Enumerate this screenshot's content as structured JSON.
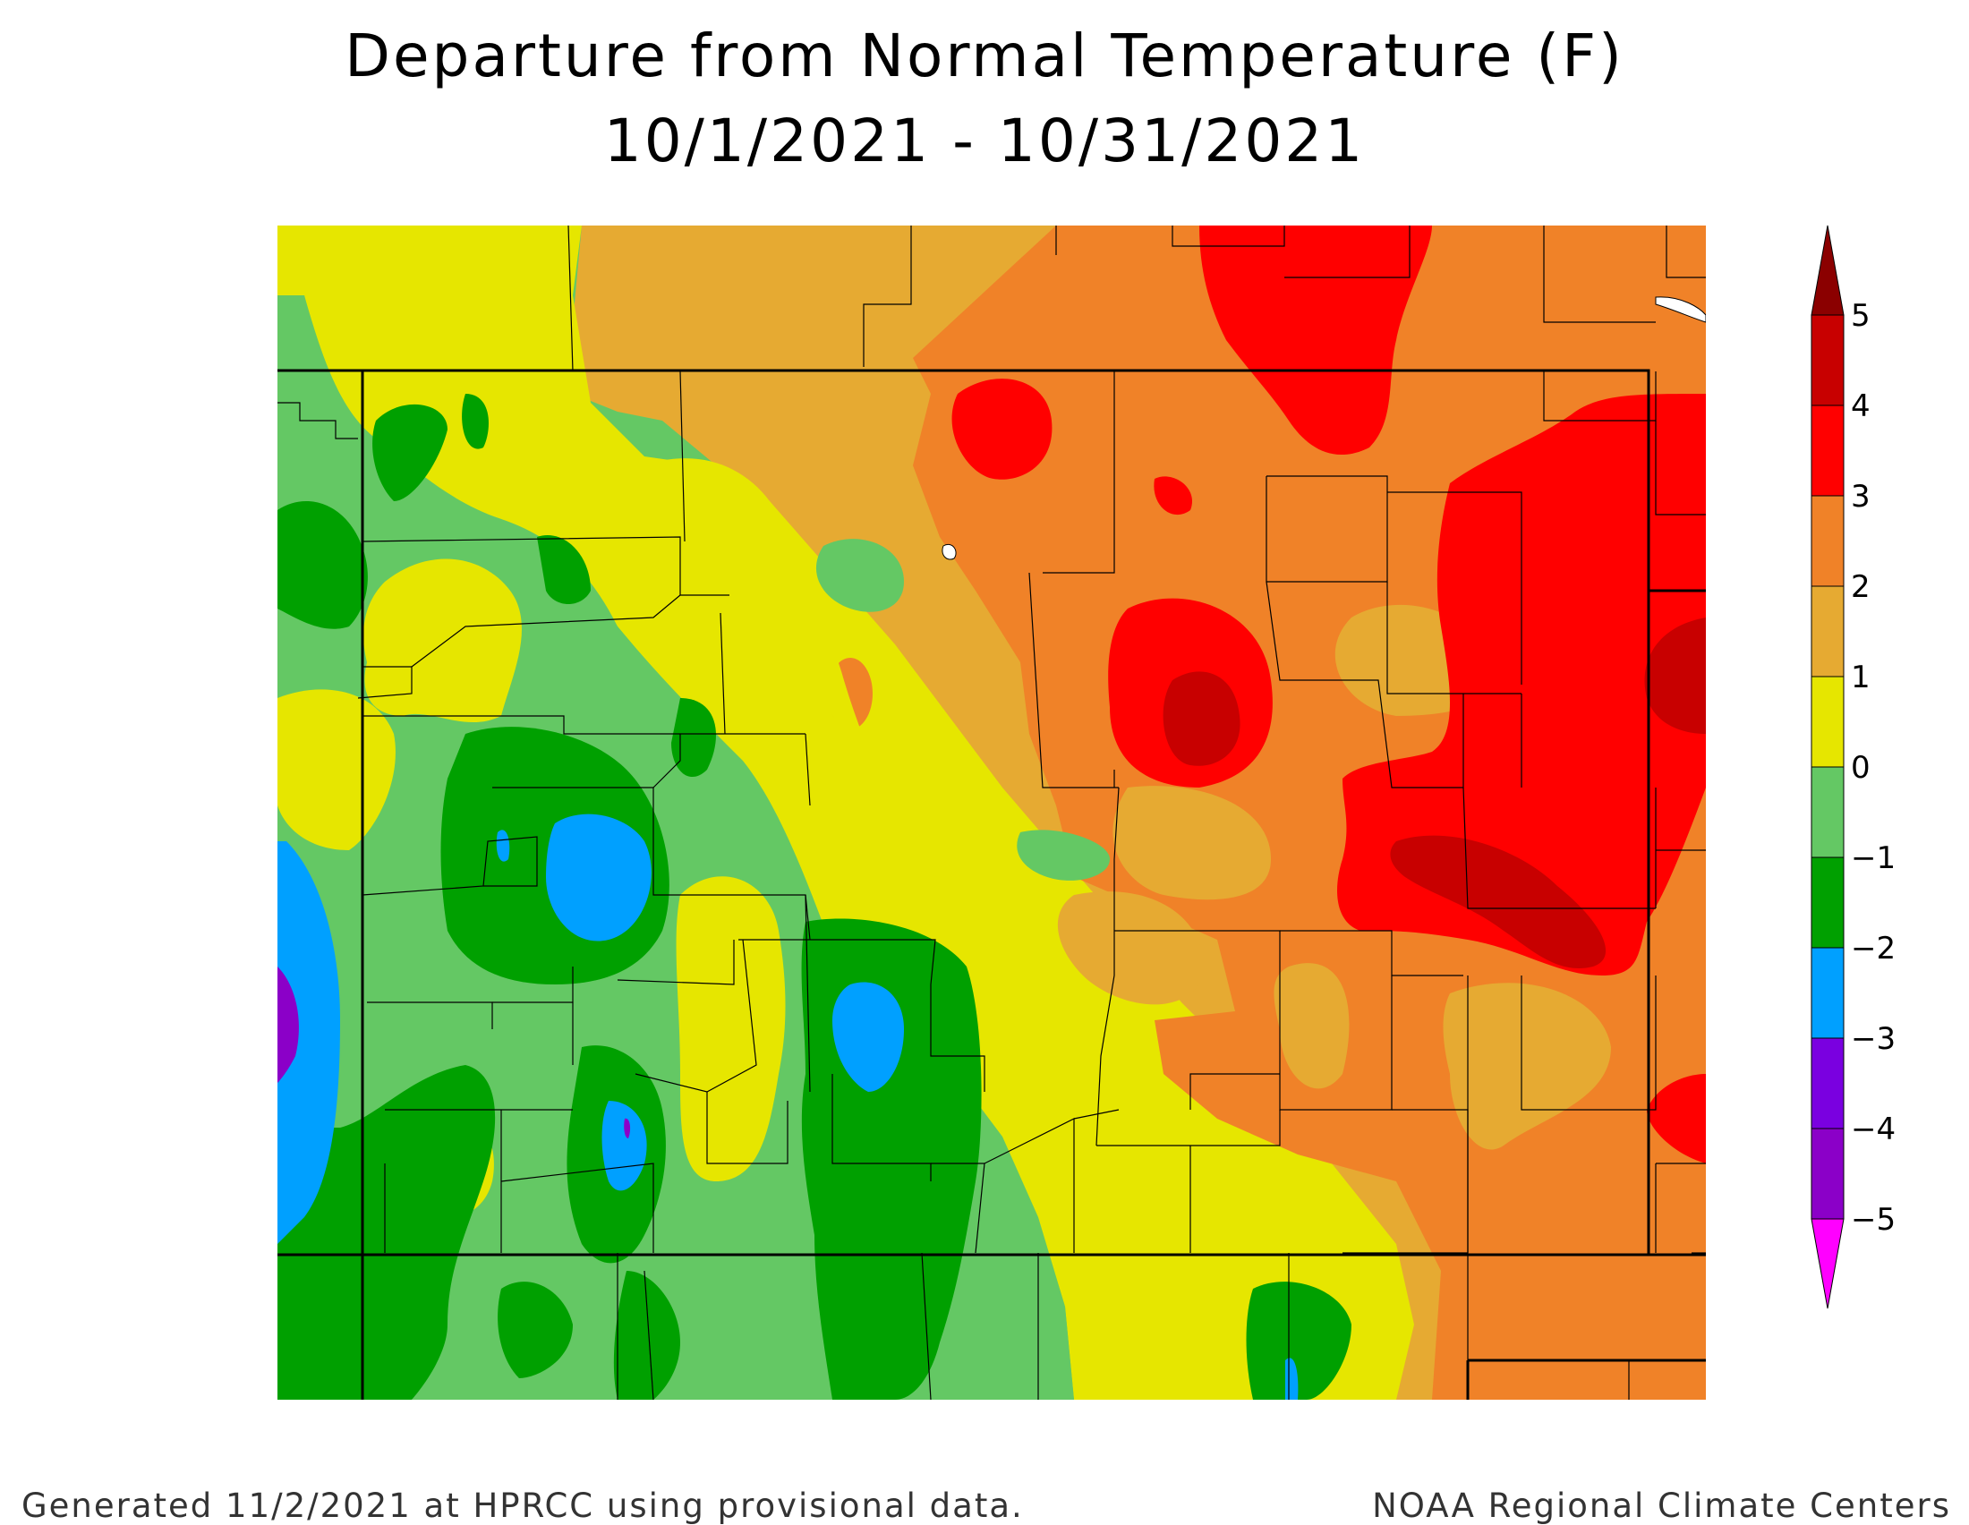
{
  "title": {
    "line1": "Departure from Normal Temperature (F)",
    "line2": "10/1/2021 - 10/31/2021"
  },
  "legend": {
    "bins": [
      {
        "min": -5,
        "max": -4,
        "color": "#8b00c8"
      },
      {
        "min": -4,
        "max": -3,
        "color": "#7a00e0"
      },
      {
        "min": -3,
        "max": -2,
        "color": "#00a0ff"
      },
      {
        "min": -2,
        "max": -1,
        "color": "#00a000"
      },
      {
        "min": -1,
        "max": 0,
        "color": "#64c864"
      },
      {
        "min": 0,
        "max": 1,
        "color": "#e6e600"
      },
      {
        "min": 1,
        "max": 2,
        "color": "#e6aa32"
      },
      {
        "min": 2,
        "max": 3,
        "color": "#f08228"
      },
      {
        "min": 3,
        "max": 4,
        "color": "#ff0000"
      },
      {
        "min": 4,
        "max": 5,
        "color": "#c80000"
      }
    ],
    "low_extension_color": "#ff00ff",
    "high_extension_color": "#8b0000",
    "tick_labels": [
      "5",
      "4",
      "3",
      "2",
      "1",
      "0",
      "−1",
      "−2",
      "−3",
      "−4",
      "−5"
    ]
  },
  "footer": {
    "left": "Generated 11/2/2021 at HPRCC using provisional data.",
    "right": "NOAA Regional Climate Centers"
  }
}
